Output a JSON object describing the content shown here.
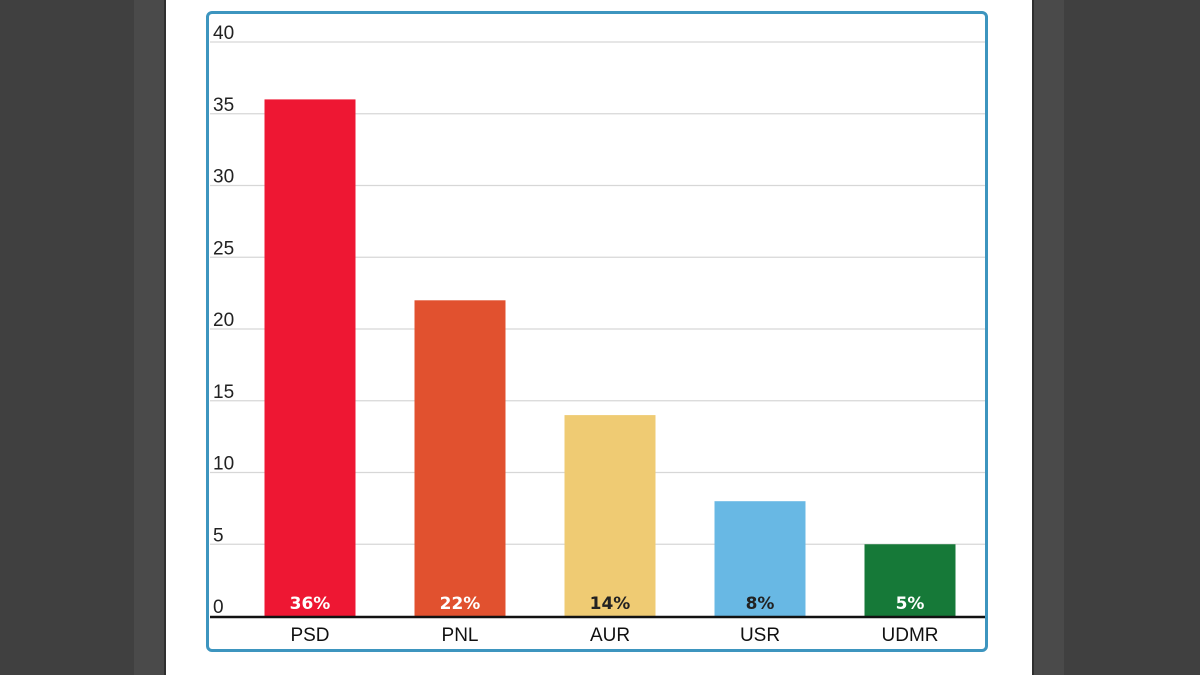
{
  "chart_data": {
    "type": "bar",
    "categories": [
      "PSD",
      "PNL",
      "AUR",
      "USR",
      "UDMR"
    ],
    "values": [
      36,
      22,
      14,
      8,
      5
    ],
    "data_labels": [
      "36%",
      "22%",
      "14%",
      "8%",
      "5%"
    ],
    "colors": [
      "#ee1733",
      "#e1512f",
      "#efcb73",
      "#68b8e4",
      "#167938"
    ],
    "data_label_colors": [
      "#ffffff",
      "#ffffff",
      "#222222",
      "#222222",
      "#ffffff"
    ],
    "ylim": [
      0,
      40
    ],
    "yticks": [
      0,
      5,
      10,
      15,
      20,
      25,
      30,
      35,
      40
    ],
    "grid": true,
    "legend": "none",
    "title": "",
    "xlabel": "",
    "ylabel": ""
  }
}
